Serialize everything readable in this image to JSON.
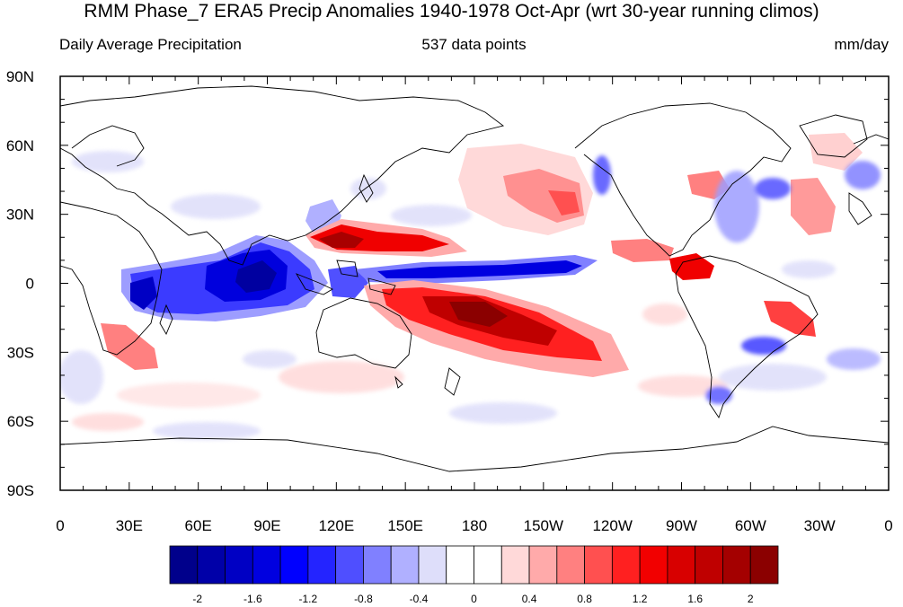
{
  "title": "RMM Phase_7 ERA5 Precip Anomalies 1940-1978 Oct-Apr (wrt 30-year running climos)",
  "subtitle_left": "Daily Average Precipitation",
  "subtitle_center": "537 data points",
  "subtitle_right": "mm/day",
  "lat_labels": [
    "90N",
    "60N",
    "30N",
    "0",
    "30S",
    "60S",
    "90S"
  ],
  "lon_labels": [
    "0",
    "30E",
    "60E",
    "90E",
    "120E",
    "150E",
    "180",
    "150W",
    "120W",
    "90W",
    "60W",
    "30W",
    "0"
  ],
  "colorbar": {
    "tick_labels": [
      "-2",
      "-1.6",
      "-1.2",
      "-0.8",
      "-0.4",
      "0",
      "0.4",
      "0.8",
      "1.2",
      "1.6",
      "2"
    ],
    "colors": [
      "#00008b",
      "#0000a8",
      "#0000c4",
      "#0000e0",
      "#0000ff",
      "#2424ff",
      "#4f4fff",
      "#8080ff",
      "#b0b0ff",
      "#dedefa",
      "#ffffff",
      "#ffffff",
      "#ffd9d9",
      "#ffaaaa",
      "#ff8080",
      "#ff5050",
      "#ff2020",
      "#f20000",
      "#d80000",
      "#bf0000",
      "#a40000",
      "#8b0000"
    ]
  }
}
